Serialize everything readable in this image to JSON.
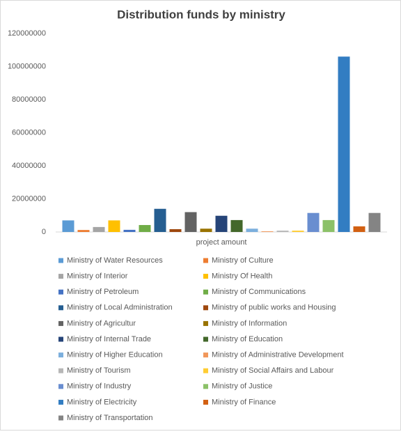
{
  "chart_data": {
    "type": "bar",
    "title": "Distribution funds by ministry",
    "categories": [
      "project amount"
    ],
    "series": [
      {
        "name": "Ministry of Water Resources",
        "color": "#5b9bd5",
        "values": [
          7000000
        ]
      },
      {
        "name": "Ministry of Culture",
        "color": "#ed7d31",
        "values": [
          1200000
        ]
      },
      {
        "name": "Ministry of Interior",
        "color": "#a5a5a5",
        "values": [
          3000000
        ]
      },
      {
        "name": "Ministry Of Health",
        "color": "#ffc000",
        "values": [
          7000000
        ]
      },
      {
        "name": "Ministry of Petroleum",
        "color": "#4472c4",
        "values": [
          1300000
        ]
      },
      {
        "name": "Ministry of Communications",
        "color": "#70ad47",
        "values": [
          4200000
        ]
      },
      {
        "name": "Ministry of Local Administration",
        "color": "#255e91",
        "values": [
          14000000
        ]
      },
      {
        "name": "Ministry of public works and Housing",
        "color": "#9e480e",
        "values": [
          1700000
        ]
      },
      {
        "name": "Ministry of Agricultur",
        "color": "#636363",
        "values": [
          12000000
        ]
      },
      {
        "name": "Ministry of Information",
        "color": "#997300",
        "values": [
          2000000
        ]
      },
      {
        "name": "Ministry of Internal Trade",
        "color": "#264478",
        "values": [
          9800000
        ]
      },
      {
        "name": "Ministry of Education",
        "color": "#43682b",
        "values": [
          7200000
        ]
      },
      {
        "name": "Ministry of Higher Education",
        "color": "#7cafdd",
        "values": [
          2000000
        ]
      },
      {
        "name": "Ministry of Administrative Development",
        "color": "#f1975a",
        "values": [
          400000
        ]
      },
      {
        "name": "Ministry of Tourism",
        "color": "#b7b7b7",
        "values": [
          800000
        ]
      },
      {
        "name": "Ministry of Social Affairs and Labour",
        "color": "#ffcd33",
        "values": [
          800000
        ]
      },
      {
        "name": "Ministry of Industry",
        "color": "#698ed0",
        "values": [
          11500000
        ]
      },
      {
        "name": "Ministry of Justice",
        "color": "#8cc168",
        "values": [
          7200000
        ]
      },
      {
        "name": "Ministry of Electricity",
        "color": "#327dc2",
        "values": [
          106000000
        ]
      },
      {
        "name": "Ministry of Finance",
        "color": "#d26012",
        "values": [
          3400000
        ]
      },
      {
        "name": "Ministry of Transportation",
        "color": "#848484",
        "values": [
          11500000
        ]
      }
    ],
    "ylim": [
      0,
      120000000
    ],
    "yticks": [
      0,
      20000000,
      40000000,
      60000000,
      80000000,
      100000000,
      120000000
    ],
    "grid": false,
    "legend": "bottom"
  }
}
